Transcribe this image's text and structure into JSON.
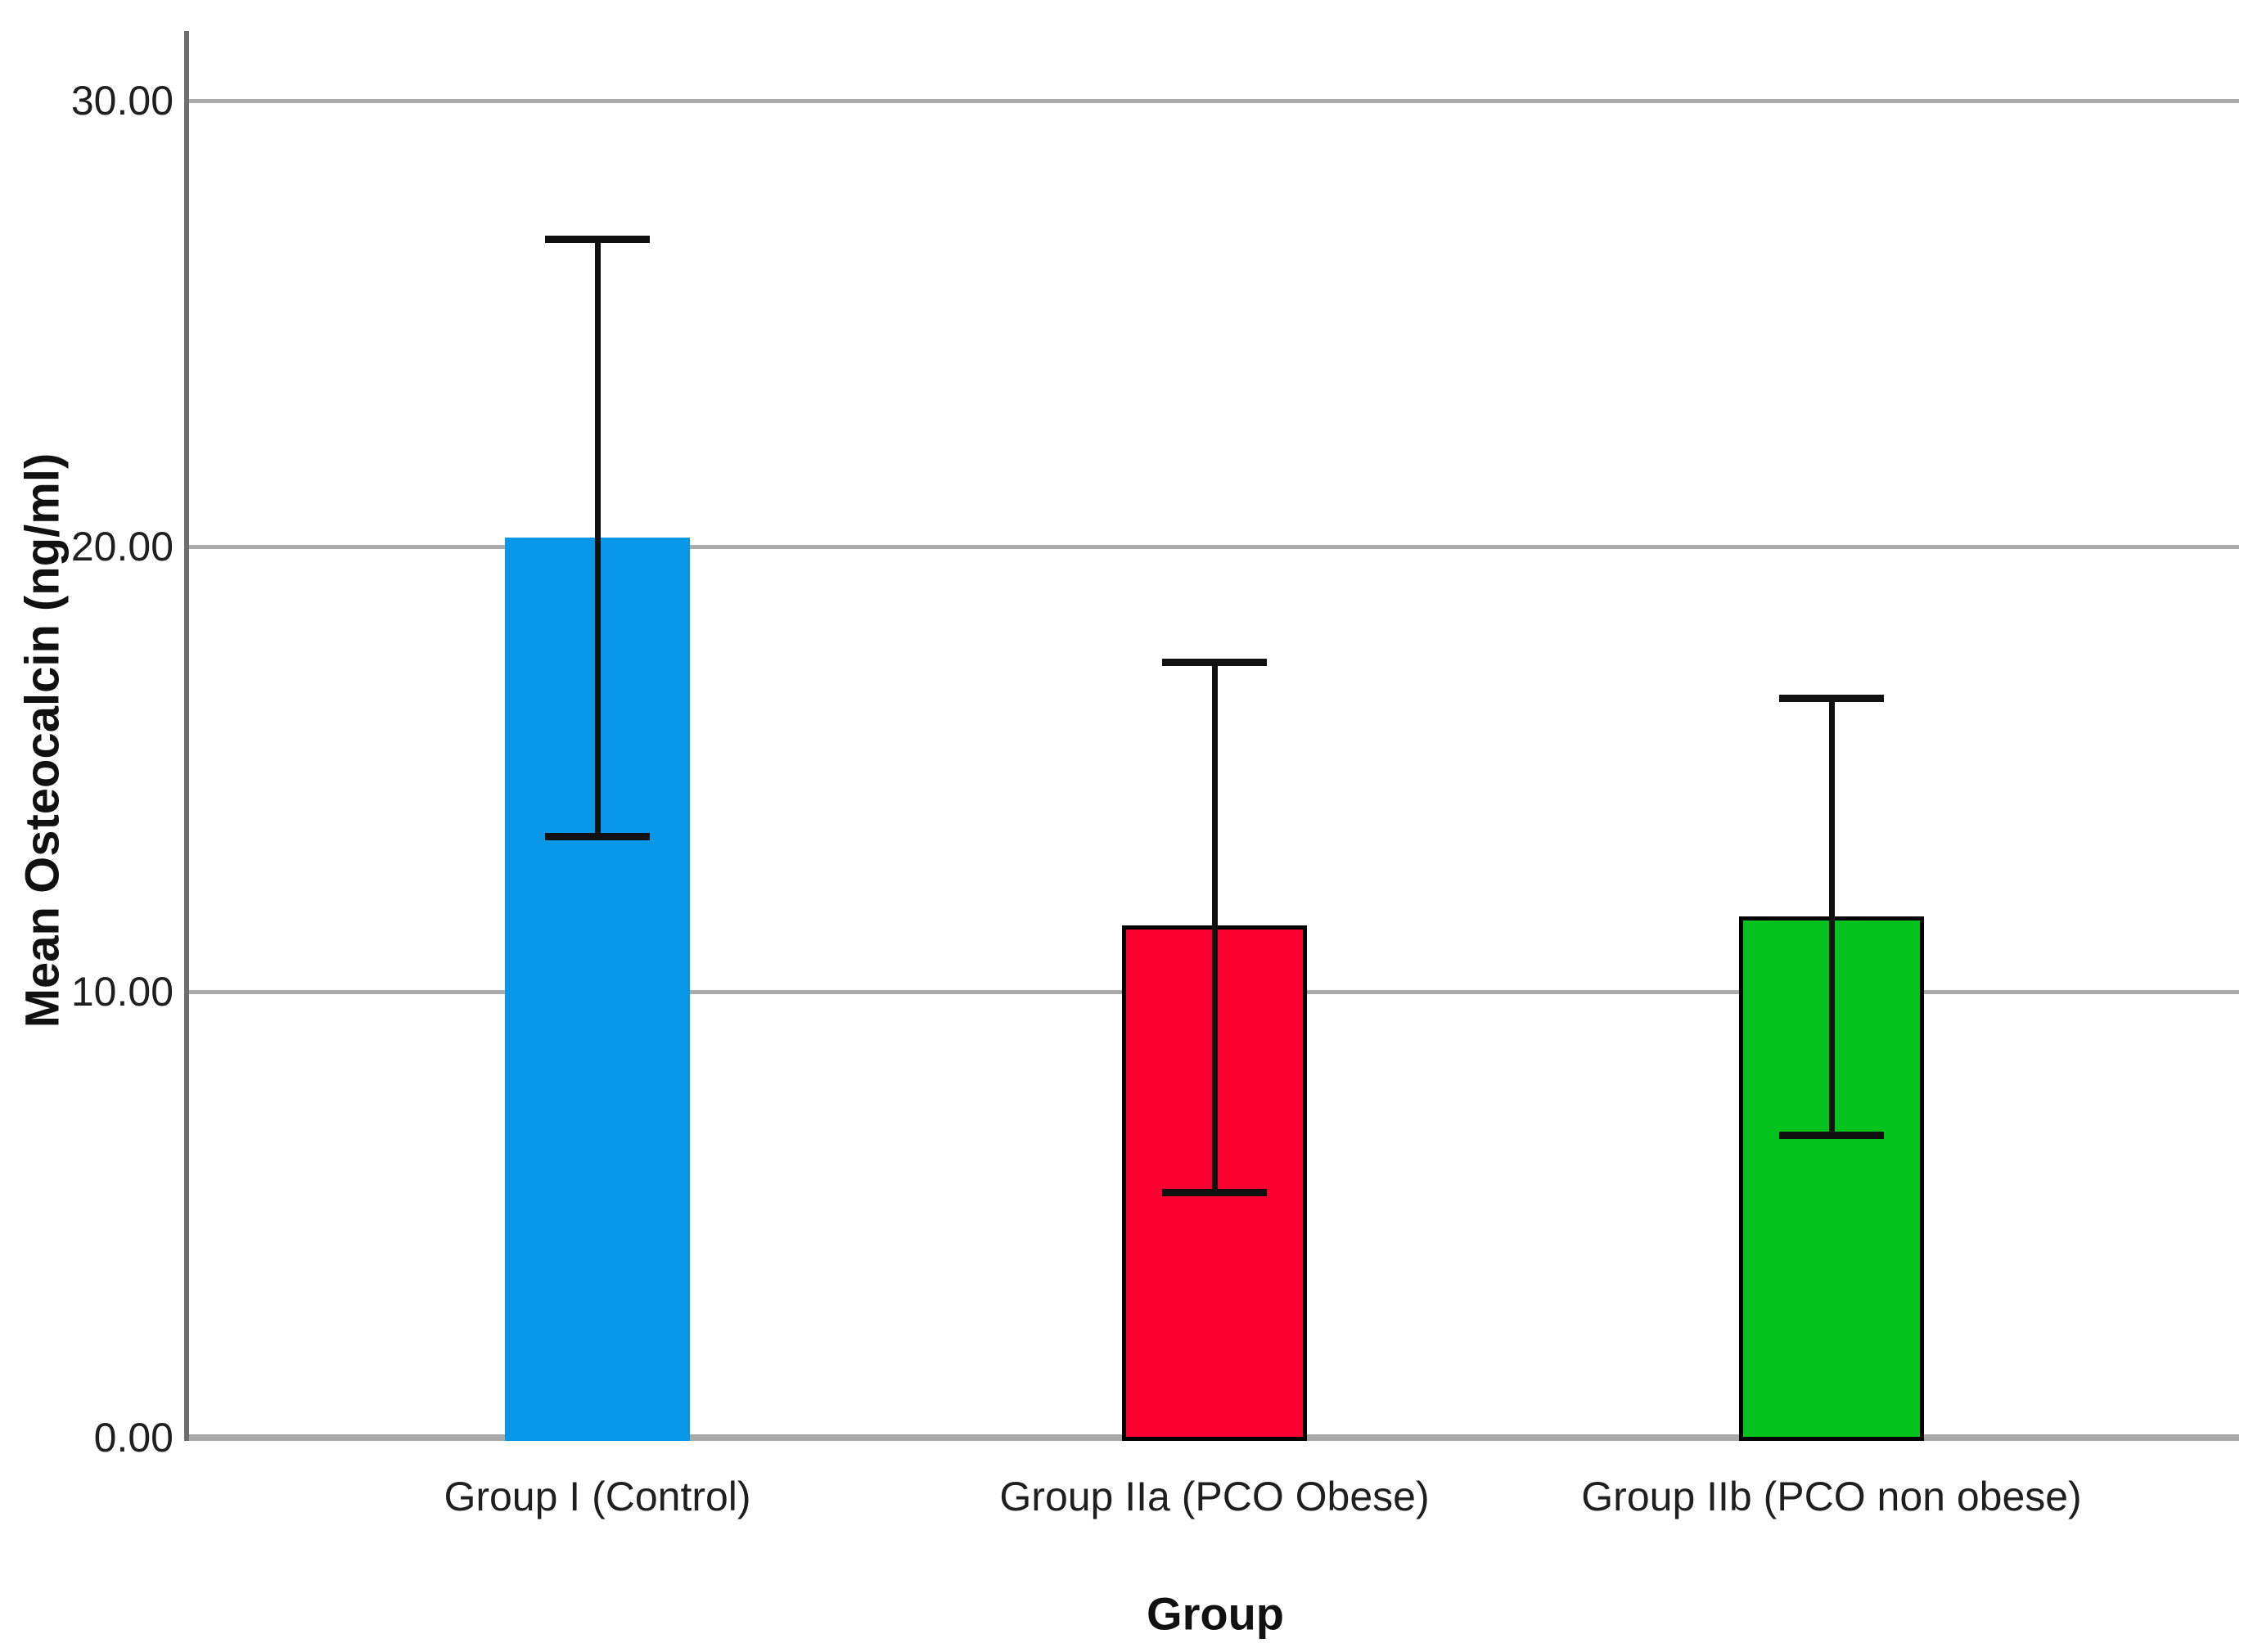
{
  "chart_data": {
    "type": "bar",
    "title": "",
    "xlabel": "Group",
    "ylabel": "Mean Osteocalcin (ng/ml)",
    "categories": [
      "Group I (Control)",
      "Group IIa (PCO Obese)",
      "Group IIb (PCO non obese)"
    ],
    "values": [
      20.2,
      11.5,
      11.7
    ],
    "error_bars": {
      "upper": [
        26.9,
        17.4,
        16.6
      ],
      "lower": [
        13.5,
        5.5,
        6.8
      ]
    },
    "bar_colors": [
      "#0997E8",
      "#FA0030",
      "#04C31C"
    ],
    "bar_border_colors": [
      "none",
      "#000000",
      "#000000"
    ],
    "y_ticks": [
      {
        "value": 30,
        "label": "30.00"
      },
      {
        "value": 20,
        "label": "20.00"
      },
      {
        "value": 10,
        "label": "10.00"
      },
      {
        "value": 0,
        "label": "0.00"
      }
    ],
    "ylim": [
      0,
      31.6
    ],
    "grid": "horizontal",
    "legend": "none"
  }
}
